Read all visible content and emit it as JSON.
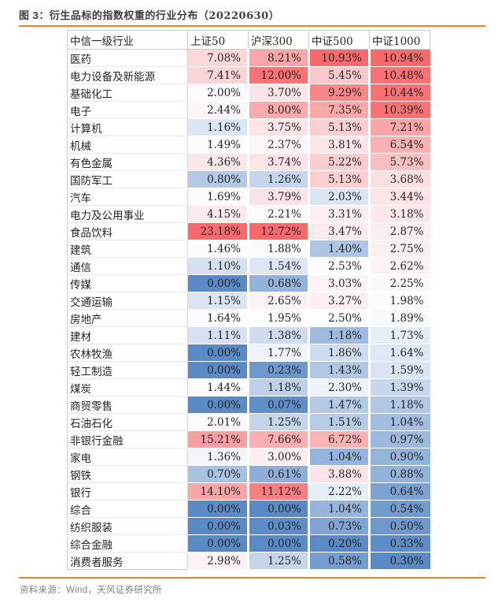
{
  "title": {
    "text_before": "图 3：衍生品标的指数权重的行业分布（",
    "date": "20220630",
    "text_after": "）",
    "full": "图 3：衍生品标的指数权重的行业分布（20220630）"
  },
  "source": "资料来源：Wind，天风证券研究所",
  "colors": {
    "accent_rule": "#e8811f",
    "heat_min": "#5A8AC6",
    "heat_mid": "#FCFCFF",
    "heat_max": "#F8696B",
    "text": "#262626",
    "grid": "#c9c9c9"
  },
  "table": {
    "columns": [
      "中信一级行业",
      "上证50",
      "沪深300",
      "中证500",
      "中证1000"
    ],
    "rows": [
      {
        "industry": "医药",
        "values": [
          "7.08%",
          "8.21%",
          "10.93%",
          "10.94%"
        ],
        "colors": [
          "#FBD6D9",
          "#FAA6A9",
          "#F8696B",
          "#F8696B"
        ]
      },
      {
        "industry": "电力设备及新能源",
        "values": [
          "7.41%",
          "12.00%",
          "5.45%",
          "10.48%"
        ],
        "colors": [
          "#FBD4D6",
          "#F87375",
          "#FBC9CB",
          "#F87173"
        ]
      },
      {
        "industry": "基础化工",
        "values": [
          "2.00%",
          "3.70%",
          "9.29%",
          "10.44%"
        ],
        "colors": [
          "#FCF8FB",
          "#FBE4E7",
          "#F98688",
          "#F87173"
        ]
      },
      {
        "industry": "电子",
        "values": [
          "2.44%",
          "8.00%",
          "7.35%",
          "10.39%"
        ],
        "colors": [
          "#FCF5F8",
          "#FAA9AC",
          "#FAA8AA",
          "#F87274"
        ]
      },
      {
        "industry": "计算机",
        "values": [
          "1.16%",
          "3.75%",
          "5.13%",
          "7.21%"
        ],
        "colors": [
          "#DCE5F4",
          "#FBE3E6",
          "#FBCED1",
          "#FAA6A8"
        ]
      },
      {
        "industry": "机械",
        "values": [
          "1.49%",
          "2.37%",
          "3.81%",
          "6.54%"
        ],
        "colors": [
          "#FCFBFE",
          "#FCF6F9",
          "#FBE5E8",
          "#FAB1B3"
        ]
      },
      {
        "industry": "有色金属",
        "values": [
          "4.36%",
          "3.74%",
          "5.22%",
          "5.73%"
        ],
        "colors": [
          "#FBE8EB",
          "#FBE3E6",
          "#FBCDD0",
          "#FABEC1"
        ]
      },
      {
        "industry": "国防军工",
        "values": [
          "0.80%",
          "1.26%",
          "5.13%",
          "3.68%"
        ],
        "colors": [
          "#B3C9E5",
          "#C5D5EB",
          "#FBCED1",
          "#FBE0E2"
        ]
      },
      {
        "industry": "汽车",
        "values": [
          "1.69%",
          "3.79%",
          "2.03%",
          "3.44%"
        ],
        "colors": [
          "#FCFAFD",
          "#FBE2E5",
          "#DAE4F3",
          "#FBE3E6"
        ]
      },
      {
        "industry": "电力及公用事业",
        "values": [
          "4.15%",
          "2.21%",
          "3.31%",
          "3.18%"
        ],
        "colors": [
          "#FBEAED",
          "#FCF8FB",
          "#FCEEF1",
          "#FBE8EB"
        ]
      },
      {
        "industry": "食品饮料",
        "values": [
          "23.18%",
          "12.72%",
          "3.47%",
          "2.87%"
        ],
        "colors": [
          "#F8696B",
          "#F8696B",
          "#FBEBEE",
          "#FBEDF0"
        ]
      },
      {
        "industry": "建筑",
        "values": [
          "1.46%",
          "1.88%",
          "1.40%",
          "2.75%"
        ],
        "colors": [
          "#FCFCFF",
          "#F9FAFE",
          "#AEC5E4",
          "#FCEFF2"
        ]
      },
      {
        "industry": "通信",
        "values": [
          "1.10%",
          "1.54%",
          "2.53%",
          "2.62%"
        ],
        "colors": [
          "#D5E1F1",
          "#DCE6F4",
          "#FCFCFF",
          "#FCF1F4"
        ]
      },
      {
        "industry": "传媒",
        "values": [
          "0.00%",
          "0.68%",
          "3.03%",
          "2.25%"
        ],
        "colors": [
          "#5A8AC6",
          "#93B3DA",
          "#FCF3F6",
          "#FCF7FA"
        ]
      },
      {
        "industry": "交通运输",
        "values": [
          "1.15%",
          "2.65%",
          "3.27%",
          "1.98%"
        ],
        "colors": [
          "#DAE4F3",
          "#FCF2F5",
          "#FCEFF2",
          "#FCFCFF"
        ]
      },
      {
        "industry": "房地产",
        "values": [
          "1.64%",
          "1.95%",
          "2.50%",
          "1.89%"
        ],
        "colors": [
          "#FCFAFD",
          "#FCFCFF",
          "#FBFCFF",
          "#F8F9FD"
        ]
      },
      {
        "industry": "建材",
        "values": [
          "1.11%",
          "1.38%",
          "1.18%",
          "1.73%"
        ],
        "colors": [
          "#D6E1F2",
          "#CFDCEF",
          "#9FBADE",
          "#E8EEF8"
        ]
      },
      {
        "industry": "农林牧渔",
        "values": [
          "0.00%",
          "1.77%",
          "1.86%",
          "1.64%"
        ],
        "colors": [
          "#5A8AC6",
          "#F0F3FB",
          "#CEDCEF",
          "#DFE7F5"
        ]
      },
      {
        "industry": "轻工制造",
        "values": [
          "0.00%",
          "0.23%",
          "1.43%",
          "1.59%"
        ],
        "colors": [
          "#5A8AC6",
          "#6E98CD",
          "#B0C7E4",
          "#DAE4F3"
        ]
      },
      {
        "industry": "煤炭",
        "values": [
          "1.44%",
          "1.18%",
          "2.30%",
          "1.39%"
        ],
        "colors": [
          "#FBFBFF",
          "#BED0E9",
          "#EDF1FA",
          "#C6D6EC"
        ]
      },
      {
        "industry": "商贸零售",
        "values": [
          "0.00%",
          "0.07%",
          "1.47%",
          "1.18%"
        ],
        "colors": [
          "#5A8AC6",
          "#608EC8",
          "#B3C9E5",
          "#B1C7E5"
        ]
      },
      {
        "industry": "石油石化",
        "values": [
          "2.01%",
          "1.25%",
          "1.51%",
          "1.04%"
        ],
        "colors": [
          "#FCF8FB",
          "#C4D4EB",
          "#B6CBE6",
          "#A3BEE0"
        ]
      },
      {
        "industry": "非银行金融",
        "values": [
          "15.21%",
          "7.66%",
          "6.72%",
          "0.97%"
        ],
        "colors": [
          "#F99FA1",
          "#FAAEB0",
          "#FAB3B5",
          "#9CB9DD"
        ]
      },
      {
        "industry": "家电",
        "values": [
          "1.36%",
          "3.00%",
          "1.04%",
          "0.90%"
        ],
        "colors": [
          "#F2F5FB",
          "#FBEDF0",
          "#95B3DB",
          "#95B4DB"
        ]
      },
      {
        "industry": "钢铁",
        "values": [
          "0.70%",
          "0.61%",
          "3.88%",
          "0.88%"
        ],
        "colors": [
          "#A8C1E1",
          "#8EAED8",
          "#FBE4E7",
          "#93B2DA"
        ]
      },
      {
        "industry": "银行",
        "values": [
          "14.10%",
          "11.12%",
          "2.22%",
          "0.64%"
        ],
        "colors": [
          "#FAA6A9",
          "#F87F81",
          "#E7EEF8",
          "#7CA2D2"
        ]
      },
      {
        "industry": "综合",
        "values": [
          "0.00%",
          "0.00%",
          "1.04%",
          "0.54%"
        ],
        "colors": [
          "#5A8AC6",
          "#5A8AC6",
          "#95B3DB",
          "#729BCE"
        ]
      },
      {
        "industry": "纺织服装",
        "values": [
          "0.00%",
          "0.03%",
          "0.73%",
          "0.50%"
        ],
        "colors": [
          "#5A8AC6",
          "#5D8CC7",
          "#7FA4D3",
          "#6E98CD"
        ]
      },
      {
        "industry": "综合金融",
        "values": [
          "0.00%",
          "0.00%",
          "0.20%",
          "0.33%"
        ],
        "colors": [
          "#5A8AC6",
          "#5A8AC6",
          "#5A8AC6",
          "#5D8CC7"
        ]
      },
      {
        "industry": "消费者服务",
        "values": [
          "2.98%",
          "1.25%",
          "0.58%",
          "0.30%"
        ],
        "colors": [
          "#FCF2F5",
          "#C4D4EB",
          "#759DCF",
          "#5A8AC6"
        ]
      }
    ]
  },
  "chart_data": {
    "type": "heatmap",
    "title": "图 3：衍生品标的指数权重的行业分布（20220630）",
    "unit": "%",
    "categories": [
      "医药",
      "电力设备及新能源",
      "基础化工",
      "电子",
      "计算机",
      "机械",
      "有色金属",
      "国防军工",
      "汽车",
      "电力及公用事业",
      "食品饮料",
      "建筑",
      "通信",
      "传媒",
      "交通运输",
      "房地产",
      "建材",
      "农林牧渔",
      "轻工制造",
      "煤炭",
      "商贸零售",
      "石油石化",
      "非银行金融",
      "家电",
      "钢铁",
      "银行",
      "综合",
      "纺织服装",
      "综合金融",
      "消费者服务"
    ],
    "series": [
      {
        "name": "上证50",
        "values": [
          7.08,
          7.41,
          2.0,
          2.44,
          1.16,
          1.49,
          4.36,
          0.8,
          1.69,
          4.15,
          23.18,
          1.46,
          1.1,
          0.0,
          1.15,
          1.64,
          1.11,
          0.0,
          0.0,
          1.44,
          0.0,
          2.01,
          15.21,
          1.36,
          0.7,
          14.1,
          0.0,
          0.0,
          0.0,
          2.98
        ]
      },
      {
        "name": "沪深300",
        "values": [
          8.21,
          12.0,
          3.7,
          8.0,
          3.75,
          2.37,
          3.74,
          1.26,
          3.79,
          2.21,
          12.72,
          1.88,
          1.54,
          0.68,
          2.65,
          1.95,
          1.38,
          1.77,
          0.23,
          1.18,
          0.07,
          1.25,
          7.66,
          3.0,
          0.61,
          11.12,
          0.0,
          0.03,
          0.0,
          1.25
        ]
      },
      {
        "name": "中证500",
        "values": [
          10.93,
          5.45,
          9.29,
          7.35,
          5.13,
          3.81,
          5.22,
          5.13,
          2.03,
          3.31,
          3.47,
          1.4,
          2.53,
          3.03,
          3.27,
          2.5,
          1.18,
          1.86,
          1.43,
          2.3,
          1.47,
          1.51,
          6.72,
          1.04,
          3.88,
          2.22,
          1.04,
          0.73,
          0.2,
          0.58
        ]
      },
      {
        "name": "中证1000",
        "values": [
          10.94,
          10.48,
          10.44,
          10.39,
          7.21,
          6.54,
          5.73,
          3.68,
          3.44,
          3.18,
          2.87,
          2.75,
          2.62,
          2.25,
          1.98,
          1.89,
          1.73,
          1.64,
          1.59,
          1.39,
          1.18,
          1.04,
          0.97,
          0.9,
          0.88,
          0.64,
          0.54,
          0.5,
          0.33,
          0.3
        ]
      }
    ],
    "color_scale": {
      "min_color": "#5A8AC6",
      "mid_color": "#FCFCFF",
      "max_color": "#F8696B",
      "scope": "per-column",
      "midpoint": "50th percentile"
    },
    "legend": "off",
    "grid": "table"
  }
}
